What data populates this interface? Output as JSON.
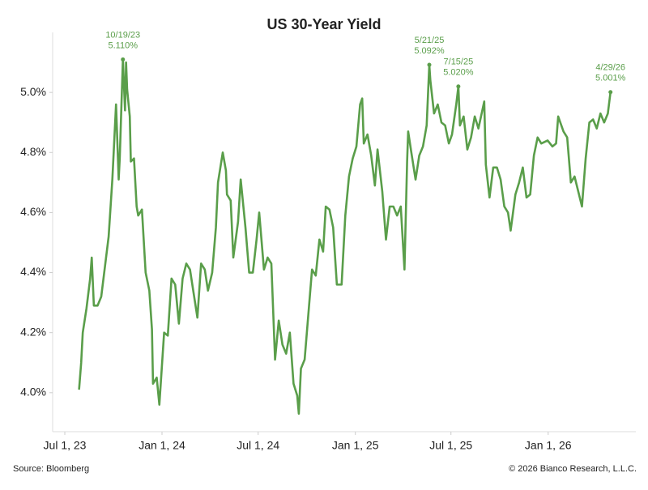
{
  "chart_data": {
    "type": "line",
    "title": "US 30-Year Yield",
    "source": "Source: Bloomberg",
    "copyright": "© 2026 Bianco Research, L.L.C.",
    "color": "#5a9e4a",
    "xlim": [
      "2023-06-08",
      "2026-06-16"
    ],
    "xticks": [
      {
        "value": "2023-07-01",
        "label": "Jul 1, 23"
      },
      {
        "value": "2024-01-01",
        "label": "Jan 1, 24"
      },
      {
        "value": "2024-07-01",
        "label": "Jul 1, 24"
      },
      {
        "value": "2025-01-01",
        "label": "Jan 1, 25"
      },
      {
        "value": "2025-07-01",
        "label": "Jul 1, 25"
      },
      {
        "value": "2026-01-01",
        "label": "Jan 1, 26"
      }
    ],
    "ylim": [
      3.87,
      5.2
    ],
    "yticks": [
      {
        "value": 4.0,
        "label": "4.0%"
      },
      {
        "value": 4.2,
        "label": "4.2%"
      },
      {
        "value": 4.4,
        "label": "4.4%"
      },
      {
        "value": 4.6,
        "label": "4.6%"
      },
      {
        "value": 4.8,
        "label": "4.8%"
      },
      {
        "value": 5.0,
        "label": "5.0%"
      }
    ],
    "x": [
      "2023-07-28",
      "2023-08-01",
      "2023-08-04",
      "2023-08-11",
      "2023-08-18",
      "2023-08-21",
      "2023-08-25",
      "2023-09-01",
      "2023-09-08",
      "2023-09-15",
      "2023-09-22",
      "2023-09-29",
      "2023-10-06",
      "2023-10-11",
      "2023-10-13",
      "2023-10-19",
      "2023-10-23",
      "2023-10-25",
      "2023-10-27",
      "2023-11-01",
      "2023-11-03",
      "2023-11-09",
      "2023-11-14",
      "2023-11-17",
      "2023-11-24",
      "2023-12-01",
      "2023-12-08",
      "2023-12-13",
      "2023-12-15",
      "2023-12-22",
      "2023-12-27",
      "2024-01-05",
      "2024-01-12",
      "2024-01-19",
      "2024-01-26",
      "2024-02-02",
      "2024-02-09",
      "2024-02-16",
      "2024-02-23",
      "2024-03-01",
      "2024-03-08",
      "2024-03-15",
      "2024-03-22",
      "2024-03-28",
      "2024-04-05",
      "2024-04-12",
      "2024-04-16",
      "2024-04-25",
      "2024-05-01",
      "2024-05-03",
      "2024-05-10",
      "2024-05-15",
      "2024-05-24",
      "2024-05-29",
      "2024-06-07",
      "2024-06-14",
      "2024-06-21",
      "2024-06-28",
      "2024-07-03",
      "2024-07-12",
      "2024-07-19",
      "2024-07-26",
      "2024-08-02",
      "2024-08-09",
      "2024-08-16",
      "2024-08-23",
      "2024-08-30",
      "2024-09-06",
      "2024-09-13",
      "2024-09-16",
      "2024-09-20",
      "2024-09-27",
      "2024-10-04",
      "2024-10-11",
      "2024-10-18",
      "2024-10-25",
      "2024-11-01",
      "2024-11-06",
      "2024-11-13",
      "2024-11-20",
      "2024-11-27",
      "2024-12-06",
      "2024-12-13",
      "2024-12-20",
      "2024-12-27",
      "2025-01-03",
      "2025-01-10",
      "2025-01-14",
      "2025-01-17",
      "2025-01-24",
      "2025-01-31",
      "2025-02-07",
      "2025-02-12",
      "2025-02-21",
      "2025-02-28",
      "2025-03-07",
      "2025-03-14",
      "2025-03-21",
      "2025-03-28",
      "2025-04-04",
      "2025-04-09",
      "2025-04-11",
      "2025-04-17",
      "2025-04-25",
      "2025-05-02",
      "2025-05-09",
      "2025-05-16",
      "2025-05-21",
      "2025-05-23",
      "2025-05-30",
      "2025-06-06",
      "2025-06-13",
      "2025-06-20",
      "2025-06-27",
      "2025-07-03",
      "2025-07-11",
      "2025-07-15",
      "2025-07-18",
      "2025-07-25",
      "2025-08-01",
      "2025-08-08",
      "2025-08-15",
      "2025-08-22",
      "2025-09-02",
      "2025-09-05",
      "2025-09-12",
      "2025-09-19",
      "2025-09-26",
      "2025-10-03",
      "2025-10-10",
      "2025-10-17",
      "2025-10-22",
      "2025-10-31",
      "2025-11-07",
      "2025-11-14",
      "2025-11-21",
      "2025-11-28",
      "2025-12-05",
      "2025-12-12",
      "2025-12-19",
      "2025-12-31",
      "2026-01-09",
      "2026-01-16",
      "2026-01-20",
      "2026-01-30",
      "2026-02-06",
      "2026-02-13",
      "2026-02-20",
      "2026-02-27",
      "2026-03-06",
      "2026-03-13",
      "2026-03-20",
      "2026-03-27",
      "2026-04-03",
      "2026-04-10",
      "2026-04-17",
      "2026-04-24",
      "2026-04-29"
    ],
    "values": [
      4.01,
      4.1,
      4.2,
      4.28,
      4.38,
      4.45,
      4.29,
      4.29,
      4.32,
      4.42,
      4.52,
      4.71,
      4.96,
      4.71,
      4.78,
      5.11,
      4.94,
      5.1,
      5.01,
      4.92,
      4.77,
      4.78,
      4.62,
      4.59,
      4.61,
      4.4,
      4.34,
      4.21,
      4.03,
      4.05,
      3.96,
      4.2,
      4.19,
      4.38,
      4.36,
      4.23,
      4.38,
      4.43,
      4.41,
      4.33,
      4.25,
      4.43,
      4.41,
      4.34,
      4.4,
      4.55,
      4.7,
      4.8,
      4.74,
      4.66,
      4.64,
      4.45,
      4.57,
      4.71,
      4.55,
      4.4,
      4.4,
      4.51,
      4.6,
      4.41,
      4.45,
      4.43,
      4.11,
      4.24,
      4.16,
      4.13,
      4.2,
      4.03,
      3.99,
      3.93,
      4.08,
      4.11,
      4.26,
      4.41,
      4.39,
      4.51,
      4.47,
      4.62,
      4.61,
      4.55,
      4.36,
      4.36,
      4.59,
      4.72,
      4.78,
      4.82,
      4.96,
      4.98,
      4.83,
      4.86,
      4.79,
      4.69,
      4.81,
      4.67,
      4.51,
      4.62,
      4.62,
      4.59,
      4.62,
      4.41,
      4.77,
      4.87,
      4.8,
      4.71,
      4.79,
      4.82,
      4.89,
      5.092,
      5.04,
      4.93,
      4.96,
      4.9,
      4.89,
      4.83,
      4.86,
      4.96,
      5.02,
      4.89,
      4.92,
      4.81,
      4.85,
      4.92,
      4.88,
      4.97,
      4.76,
      4.65,
      4.75,
      4.75,
      4.71,
      4.62,
      4.6,
      4.54,
      4.66,
      4.7,
      4.75,
      4.65,
      4.66,
      4.79,
      4.85,
      4.83,
      4.84,
      4.82,
      4.83,
      4.92,
      4.87,
      4.85,
      4.7,
      4.72,
      4.67,
      4.62,
      4.78,
      4.9,
      4.91,
      4.88,
      4.93,
      4.9,
      4.93,
      5.001
    ],
    "annotations": [
      {
        "x": "2023-10-19",
        "label": "10/19/23",
        "value": 5.11,
        "value_label": "5.110%"
      },
      {
        "x": "2025-05-21",
        "label": "5/21/25",
        "value": 5.092,
        "value_label": "5.092%"
      },
      {
        "x": "2025-07-15",
        "label": "7/15/25",
        "value": 5.02,
        "value_label": "5.020%"
      },
      {
        "x": "2026-04-29",
        "label": "4/29/26",
        "value": 5.001,
        "value_label": "5.001%"
      }
    ]
  }
}
